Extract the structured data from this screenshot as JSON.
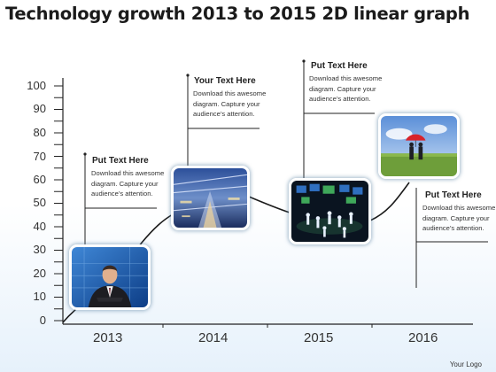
{
  "title": "Technology growth 2013 to 2015 2D linear graph",
  "logo": "Your Logo",
  "chart_data": {
    "type": "line",
    "title": "Technology growth 2013 to 2015 2D linear graph",
    "y_ticks": [
      "100",
      "90",
      "80",
      "70",
      "60",
      "50",
      "40",
      "30",
      "20",
      "10",
      "0"
    ],
    "categories": [
      "2013",
      "2014",
      "2015",
      "2016"
    ],
    "ylim": [
      0,
      100
    ],
    "grid": false
  },
  "callouts": [
    {
      "title": "Put Text Here",
      "body": "Download this awesome diagram. Capture your audience’s attention."
    },
    {
      "title": "Your Text Here",
      "body": "Download this awesome diagram. Capture your audience’s attention."
    },
    {
      "title": "Put Text Here",
      "body": "Download this awesome diagram. Capture your audience’s attention."
    },
    {
      "title": "Put Text Here",
      "body": "Download this awesome diagram. Capture your audience’s attention."
    }
  ],
  "photos": [
    {
      "name": "businessman-photo"
    },
    {
      "name": "futuristic-building-photo"
    },
    {
      "name": "digital-crowd-photo"
    },
    {
      "name": "umbrella-couple-photo"
    }
  ],
  "colors": {
    "axis": "#222222",
    "accent": "#1f5fa8",
    "background_bottom": "#e6f1fb"
  }
}
